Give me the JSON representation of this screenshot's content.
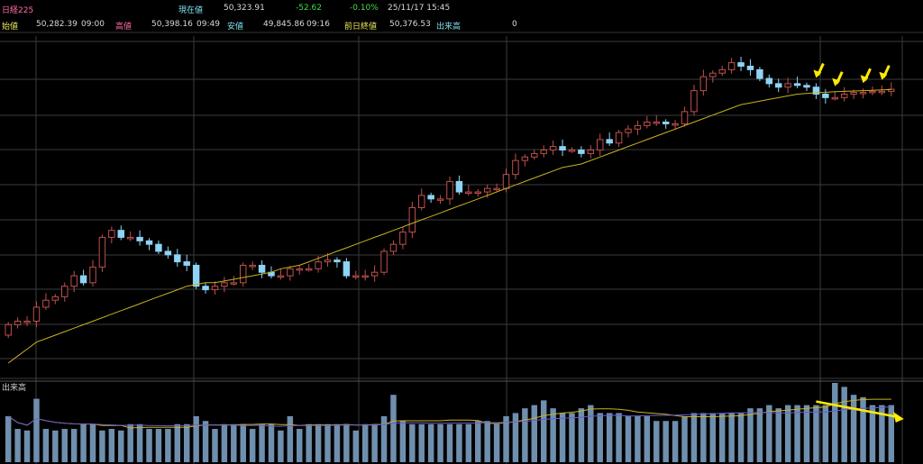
{
  "header": {
    "symbol": "日経225",
    "current_label": "現在値",
    "current_value": "50,323.91",
    "change": "-52.62",
    "change_pct": "-0.10%",
    "datetime": "25/11/17  15:45",
    "open_label": "始値",
    "open_value": "50,282.39",
    "open_time": "09:00",
    "high_label": "高値",
    "high_value": "50,398.16",
    "high_time": "09:49",
    "low_label": "安値",
    "low_value": "49,845.86",
    "low_time": "09:16",
    "prev_close_label": "前日終値",
    "prev_close_value": "50,376.53",
    "volume_label": "出来高",
    "volume_value": "0"
  },
  "colors": {
    "up_candle": "#c0504d",
    "down_candle": "#8fd3f5",
    "ma_line": "#c8b21e",
    "volume_bar": "#6f8fae",
    "arrow": "#ffea00",
    "grid": "#3b3b3b",
    "label_pink": "#ff6aa8",
    "label_yellow": "#e8e85a",
    "label_cyan": "#7fe0f0",
    "value_green": "#44dd44",
    "value_red": "#ff3b3b"
  },
  "chart_data": {
    "type": "candlestick",
    "panels": [
      "price",
      "volume"
    ],
    "volume_panel_label": "出来高",
    "price": {
      "close": [
        49650,
        49660,
        49660,
        49700,
        49720,
        49730,
        49760,
        49790,
        49770,
        49815,
        49900,
        49920,
        49900,
        49900,
        49890,
        49880,
        49860,
        49850,
        49830,
        49820,
        49760,
        49750,
        49760,
        49770,
        49770,
        49820,
        49820,
        49800,
        49790,
        49790,
        49810,
        49810,
        49810,
        49830,
        49835,
        49830,
        49790,
        49790,
        49790,
        49800,
        49860,
        49880,
        49915,
        49985,
        50020,
        50010,
        50010,
        50060,
        50030,
        50030,
        50030,
        50040,
        50040,
        50080,
        50120,
        50130,
        50140,
        50150,
        50160,
        50150,
        50150,
        50140,
        50150,
        50180,
        50170,
        50200,
        50210,
        50220,
        50230,
        50230,
        50225,
        50225,
        50260,
        50320,
        50360,
        50370,
        50380,
        50400,
        50390,
        50380,
        50355,
        50340,
        50330,
        50340,
        50335,
        50330,
        50310,
        50300,
        50300,
        50310,
        50315,
        50315,
        50318,
        50318,
        50324
      ],
      "ma": [
        49540,
        49560,
        49580,
        49600,
        49610,
        49620,
        49630,
        49640,
        49650,
        49660,
        49670,
        49680,
        49690,
        49700,
        49710,
        49720,
        49730,
        49740,
        49750,
        49760,
        49765,
        49770,
        49770,
        49775,
        49780,
        49785,
        49790,
        49795,
        49800,
        49810,
        49815,
        49820,
        49830,
        49840,
        49850,
        49860,
        49870,
        49880,
        49890,
        49900,
        49910,
        49920,
        49930,
        49940,
        49950,
        49960,
        49970,
        49980,
        49990,
        50000,
        50010,
        50020,
        50030,
        50040,
        50050,
        50060,
        50070,
        50080,
        50090,
        50100,
        50105,
        50110,
        50120,
        50130,
        50140,
        50150,
        50160,
        50170,
        50180,
        50190,
        50200,
        50210,
        50220,
        50230,
        50240,
        50250,
        50260,
        50270,
        50280,
        50285,
        50290,
        50295,
        50300,
        50305,
        50310,
        50312,
        50314,
        50315,
        50317,
        50318,
        50319,
        50320,
        50321,
        50322,
        50323
      ],
      "volume": [
        0.58,
        0.42,
        0.4,
        0.8,
        0.42,
        0.4,
        0.42,
        0.42,
        0.48,
        0.48,
        0.4,
        0.42,
        0.4,
        0.48,
        0.48,
        0.42,
        0.42,
        0.42,
        0.48,
        0.48,
        0.58,
        0.52,
        0.42,
        0.48,
        0.48,
        0.48,
        0.42,
        0.48,
        0.48,
        0.4,
        0.58,
        0.42,
        0.48,
        0.48,
        0.48,
        0.48,
        0.48,
        0.4,
        0.48,
        0.48,
        0.58,
        0.85,
        0.52,
        0.48,
        0.48,
        0.48,
        0.48,
        0.48,
        0.48,
        0.48,
        0.52,
        0.52,
        0.48,
        0.58,
        0.62,
        0.68,
        0.72,
        0.78,
        0.68,
        0.62,
        0.62,
        0.68,
        0.72,
        0.62,
        0.62,
        0.62,
        0.58,
        0.58,
        0.58,
        0.52,
        0.52,
        0.52,
        0.58,
        0.62,
        0.62,
        0.62,
        0.62,
        0.62,
        0.62,
        0.68,
        0.68,
        0.72,
        0.68,
        0.72,
        0.72,
        0.72,
        0.72,
        0.72,
        1.0,
        0.95,
        0.85,
        0.82,
        0.72,
        0.72,
        0.72
      ],
      "arrows_at_candles": [
        86,
        88,
        91,
        93
      ],
      "volume_trend_arrow": {
        "from_candle": 86,
        "to_candle": 94
      }
    }
  }
}
